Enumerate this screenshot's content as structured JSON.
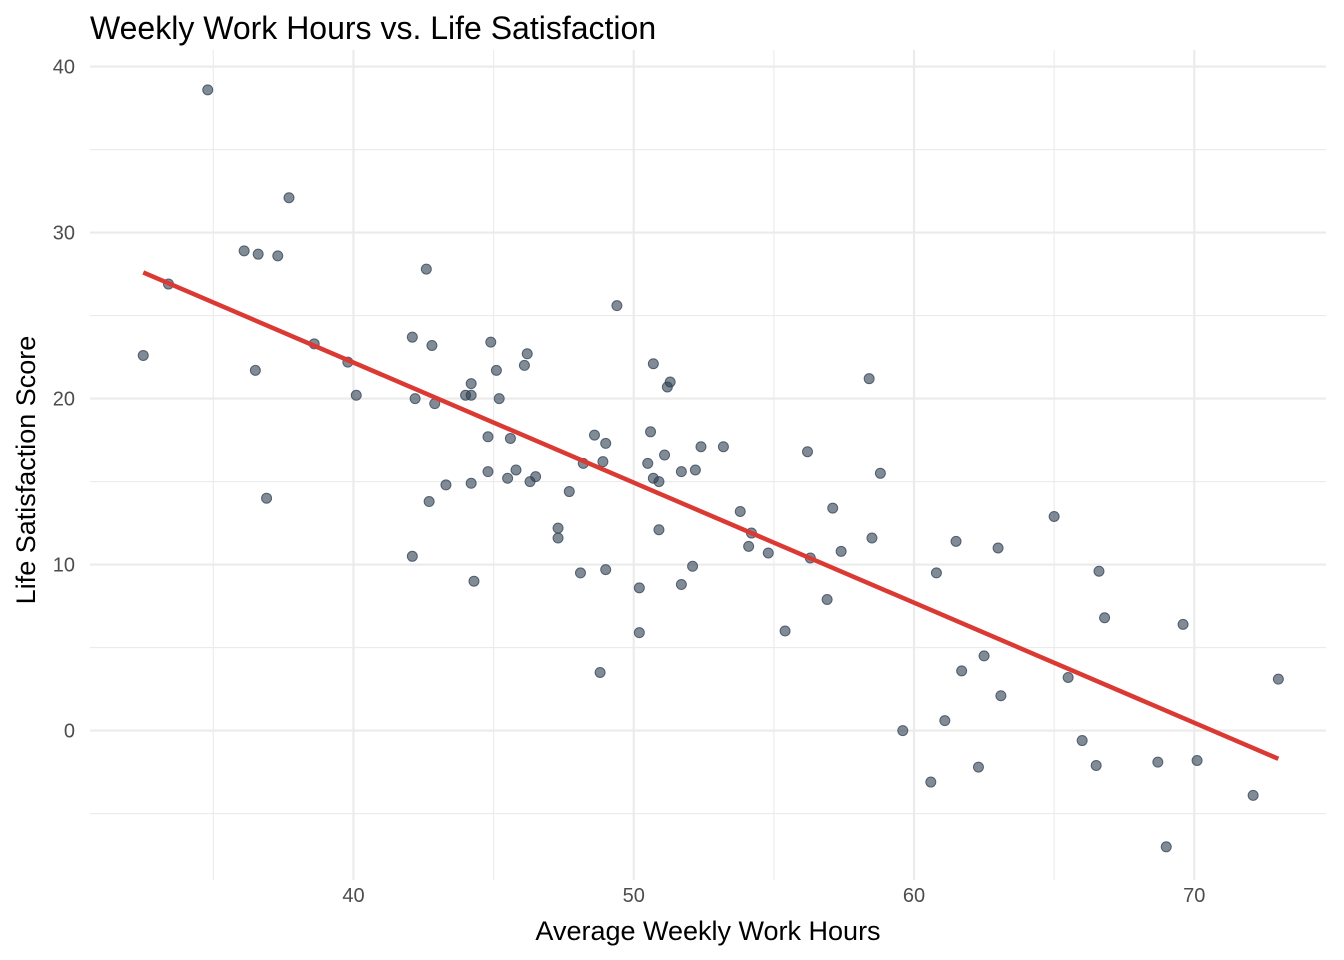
{
  "colors": {
    "background": "#ffffff",
    "grid": "#ebebeb",
    "points": "#2c3e50",
    "trend_line": "#db3a34",
    "tick_text": "#4d4d4d"
  },
  "chart_data": {
    "type": "scatter",
    "title": "Weekly Work Hours vs. Life Satisfaction",
    "xlabel": "Average Weekly Work Hours",
    "ylabel": "Life Satisfaction Score",
    "xlim": [
      30.6,
      74.7
    ],
    "ylim": [
      -9.0,
      41.0
    ],
    "x_ticks": [
      40,
      50,
      60,
      70
    ],
    "y_ticks": [
      0,
      10,
      20,
      30,
      40
    ],
    "x_tick_labels": [
      "40",
      "50",
      "60",
      "70"
    ],
    "y_tick_labels": [
      "0",
      "10",
      "20",
      "30",
      "40"
    ],
    "grid": true,
    "legend": "none",
    "trend_line": {
      "type": "linear",
      "x_start": 32.5,
      "y_start": 27.6,
      "x_end": 73.0,
      "y_end": -1.7
    },
    "series": [
      {
        "x": [
          32.5,
          33.4,
          34.8,
          36.1,
          36.5,
          36.6,
          36.9,
          37.3,
          37.7,
          38.6,
          39.8,
          40.1,
          42.1,
          42.1,
          42.2,
          42.6,
          42.7,
          42.8,
          42.9,
          43.3,
          44.0,
          44.2,
          44.2,
          44.2,
          44.3,
          44.8,
          44.8,
          44.9,
          45.1,
          45.2,
          45.5,
          45.6,
          45.8,
          46.1,
          46.2,
          46.3,
          46.5,
          47.3,
          47.3,
          47.7,
          48.1,
          48.2,
          48.6,
          48.8,
          48.9,
          49.0,
          49.0,
          49.4,
          50.2,
          50.2,
          50.5,
          50.6,
          50.7,
          50.7,
          50.9,
          50.9,
          51.1,
          51.2,
          51.3,
          51.7,
          51.7,
          52.1,
          52.2,
          52.4,
          53.2,
          53.8,
          54.1,
          54.2,
          54.8,
          55.4,
          56.2,
          56.3,
          56.9,
          57.1,
          57.4,
          58.4,
          58.5,
          58.8,
          59.6,
          60.6,
          60.8,
          61.1,
          61.5,
          61.7,
          62.3,
          62.5,
          63.0,
          63.1,
          65.0,
          65.5,
          66.0,
          66.5,
          66.6,
          66.8,
          68.7,
          69.0,
          69.6,
          70.1,
          72.1,
          73.0
        ],
        "y": [
          22.6,
          26.9,
          38.6,
          28.9,
          21.7,
          28.7,
          14.0,
          28.6,
          32.1,
          23.3,
          22.2,
          20.2,
          23.7,
          10.5,
          20.0,
          27.8,
          13.8,
          23.2,
          19.7,
          14.8,
          20.2,
          20.9,
          20.2,
          14.9,
          9.0,
          17.7,
          15.6,
          23.4,
          21.7,
          20.0,
          15.2,
          17.6,
          15.7,
          22.0,
          22.7,
          15.0,
          15.3,
          12.2,
          11.6,
          14.4,
          9.5,
          16.1,
          17.8,
          3.5,
          16.2,
          17.3,
          9.7,
          25.6,
          8.6,
          5.9,
          16.1,
          18.0,
          22.1,
          15.2,
          12.1,
          15.0,
          16.6,
          20.7,
          21.0,
          15.6,
          8.8,
          9.9,
          15.7,
          17.1,
          17.1,
          13.2,
          11.1,
          11.9,
          10.7,
          6.0,
          16.8,
          10.4,
          7.9,
          13.4,
          10.8,
          21.2,
          11.6,
          15.5,
          0.0,
          -3.1,
          9.5,
          0.6,
          11.4,
          3.6,
          -2.2,
          4.5,
          11.0,
          2.1,
          12.9,
          3.2,
          -0.6,
          -2.1,
          9.6,
          6.8,
          -1.9,
          -7.0,
          6.4,
          -1.8,
          -3.9,
          3.1
        ]
      }
    ]
  }
}
